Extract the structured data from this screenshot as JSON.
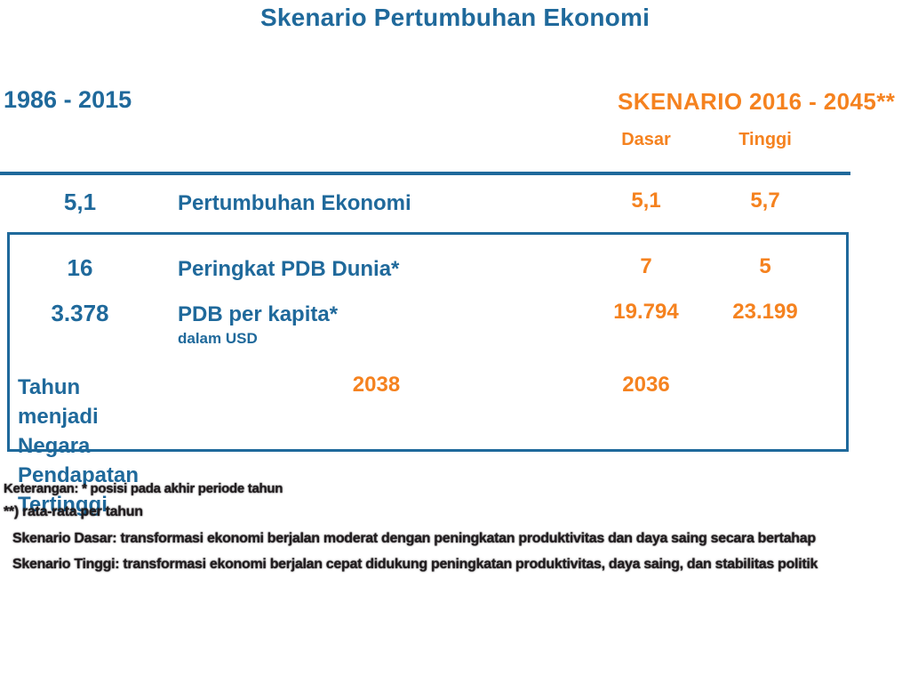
{
  "title": "Skenario Pertumbuhan Ekonomi",
  "header": {
    "historical_label": "1986 - 2015",
    "scenario_label": "SKENARIO 2016 - 2045**",
    "dasar_label": "Dasar",
    "tinggi_label": "Tinggi"
  },
  "rows": [
    {
      "historical": "5,1",
      "label": "Pertumbuhan Ekonomi",
      "label2": "",
      "sublabel": "",
      "dasar": "5,1",
      "tinggi": "5,7"
    },
    {
      "historical": "16",
      "label": "Peringkat PDB Dunia*",
      "label2": "",
      "sublabel": "",
      "dasar": "7",
      "tinggi": "5"
    },
    {
      "historical": "3.378",
      "label": "PDB per kapita*",
      "label2": "",
      "sublabel": "dalam USD",
      "dasar": "19.794",
      "tinggi": "23.199"
    },
    {
      "historical": "",
      "label": "Tahun menjadi Negara",
      "label2": "Pendapatan Tertinggi",
      "sublabel": "",
      "dasar": "2038",
      "tinggi": "2036"
    }
  ],
  "footnotes": [
    "Keterangan: * posisi pada akhir periode tahun",
    "**) rata-rata per tahun",
    "Skenario Dasar: transformasi ekonomi berjalan moderat dengan peningkatan produktivitas dan daya saing secara bertahap",
    "Skenario Tinggi: transformasi ekonomi berjalan cepat didukung peningkatan produktivitas, daya saing, dan stabilitas politik"
  ],
  "colors": {
    "blue": "#1f699b",
    "orange": "#f5821f",
    "footnote": "#211d1f"
  },
  "chart_data": {
    "type": "table",
    "title": "Skenario Pertumbuhan Ekonomi",
    "columns": [
      "1986 - 2015",
      "SKENARIO 2016 - 2045 Dasar",
      "SKENARIO 2016 - 2045 Tinggi"
    ],
    "row_labels": [
      "Pertumbuhan Ekonomi",
      "Peringkat PDB Dunia*",
      "PDB per kapita* (dalam USD)",
      "Tahun menjadi Negara Pendapatan Tertinggi"
    ],
    "cells": [
      [
        "5,1",
        "5,1",
        "5,7"
      ],
      [
        "16",
        "7",
        "5"
      ],
      [
        "3.378",
        "19.794",
        "23.199"
      ],
      [
        "",
        "2038",
        "2036"
      ]
    ]
  }
}
